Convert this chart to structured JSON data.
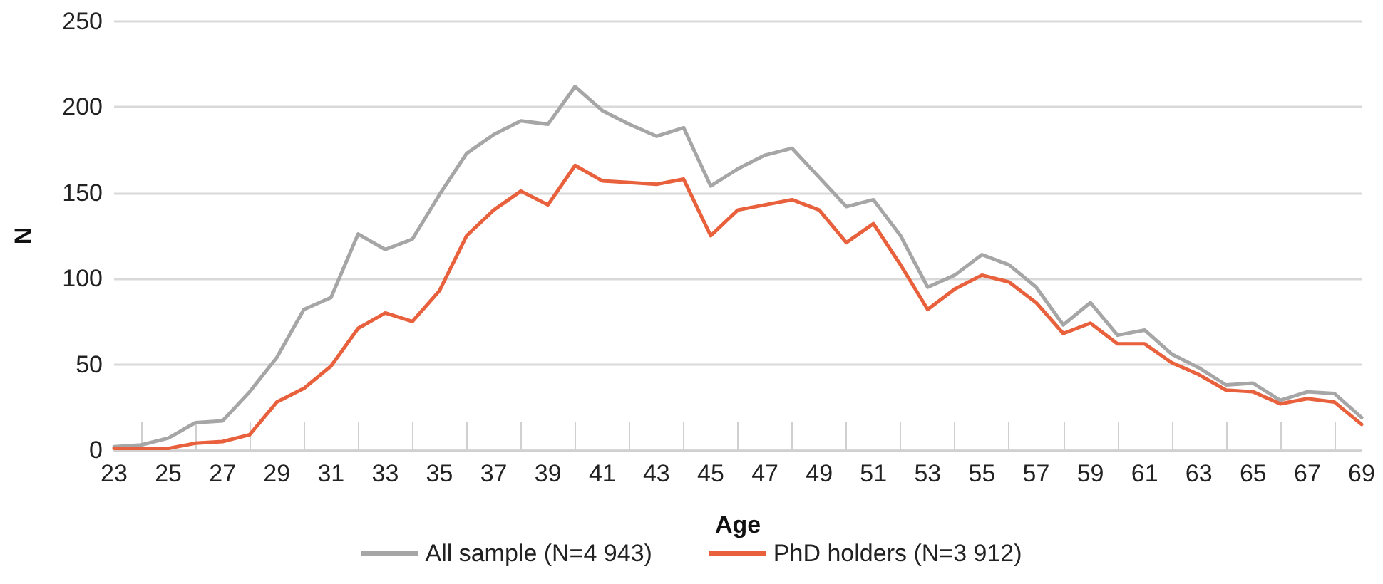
{
  "chart_data": {
    "type": "line",
    "xlabel": "Age",
    "ylabel": "N",
    "categories": [
      "23",
      null,
      "25",
      null,
      "27",
      null,
      "29",
      null,
      "31",
      null,
      "33",
      null,
      "35",
      null,
      "37",
      null,
      "39",
      null,
      "41",
      null,
      "43",
      null,
      "45",
      null,
      "47",
      null,
      "49",
      null,
      "51",
      null,
      "53",
      null,
      "55",
      null,
      "57",
      null,
      "59",
      null,
      "61",
      null,
      "63",
      null,
      "65",
      null,
      "67",
      null,
      "69"
    ],
    "series": [
      {
        "name": "All sample (N=4 943)",
        "color": "#a6a6a6",
        "values": [
          2,
          3,
          7,
          16,
          17,
          34,
          54,
          82,
          89,
          126,
          117,
          123,
          149,
          173,
          184,
          192,
          190,
          212,
          198,
          190,
          183,
          188,
          154,
          164,
          172,
          176,
          159,
          142,
          146,
          125,
          95,
          102,
          114,
          108,
          95,
          73,
          86,
          67,
          70,
          56,
          48,
          38,
          39,
          29,
          34,
          33,
          19
        ]
      },
      {
        "name": "PhD holders (N=3 912)",
        "color": "#e8603c",
        "values": [
          1,
          1,
          1,
          4,
          5,
          9,
          28,
          36,
          49,
          71,
          80,
          75,
          93,
          125,
          140,
          151,
          143,
          166,
          157,
          156,
          155,
          158,
          125,
          140,
          143,
          146,
          140,
          121,
          132,
          108,
          82,
          94,
          102,
          98,
          86,
          68,
          74,
          62,
          62,
          51,
          44,
          35,
          34,
          27,
          30,
          28,
          15
        ]
      }
    ],
    "ylim": [
      0,
      250
    ],
    "yticks": [
      0,
      50,
      100,
      150,
      200,
      250
    ],
    "grid": "y",
    "legend": "bottom",
    "marker": "none",
    "line_style": "solid"
  }
}
